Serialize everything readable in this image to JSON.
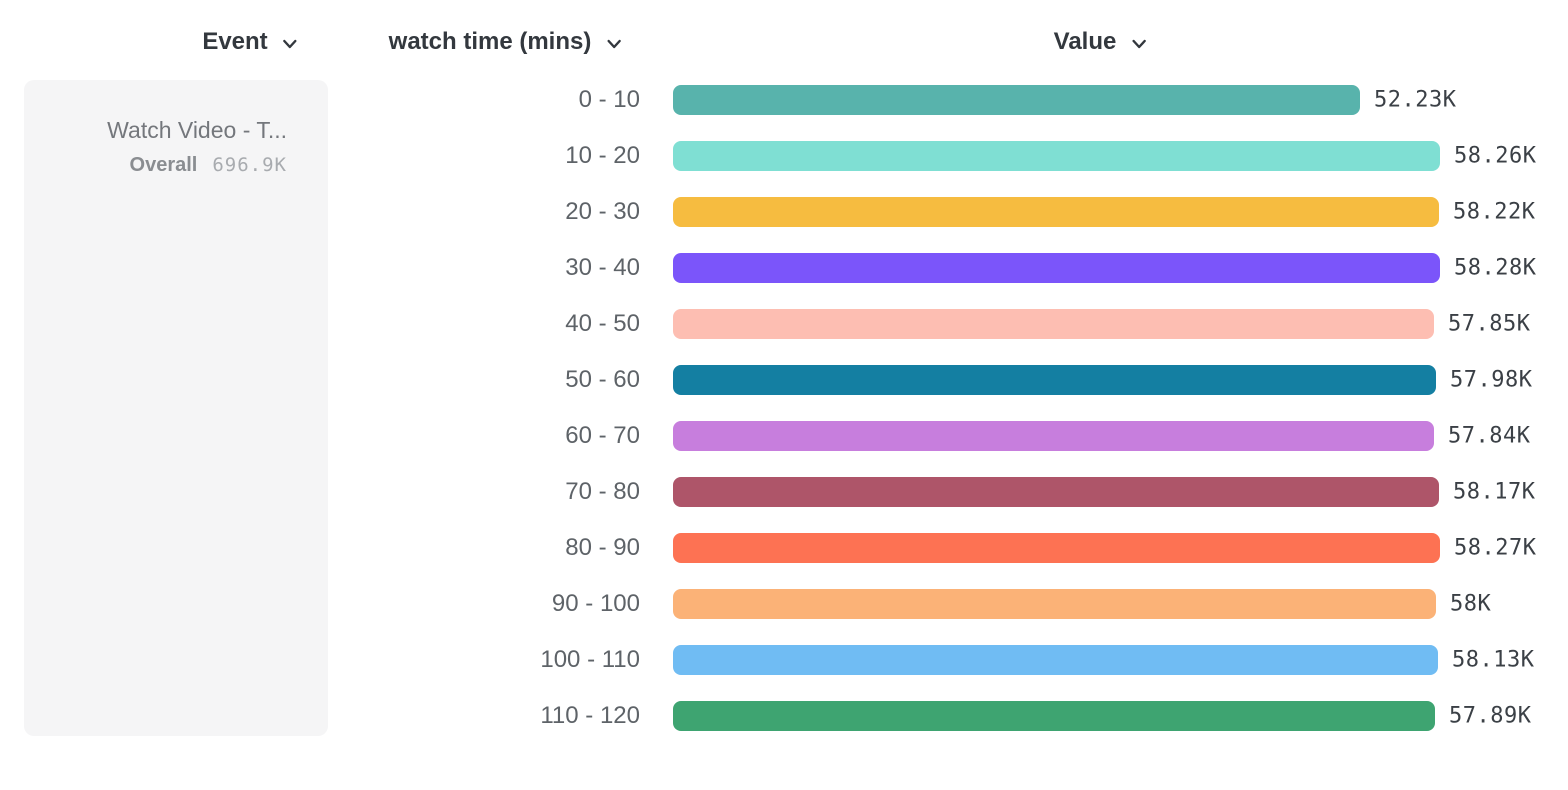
{
  "header": {
    "columns": [
      {
        "label": "Event",
        "icon": "chevron-down-icon"
      },
      {
        "label": "watch time (mins)",
        "icon": "chevron-down-icon"
      },
      {
        "label": "Value",
        "icon": "chevron-down-icon"
      }
    ]
  },
  "event_card": {
    "title": "Watch Video - T...",
    "overall_label": "Overall",
    "overall_value": "696.9K"
  },
  "chart_data": {
    "type": "bar",
    "orientation": "horizontal",
    "title": "",
    "xlabel": "Value",
    "ylabel": "watch time (mins)",
    "series_name": "Watch Video - T...",
    "series_overall_total": "696.9K",
    "categories": [
      "0 - 10",
      "10 - 20",
      "20 - 30",
      "30 - 40",
      "40 - 50",
      "50 - 60",
      "60 - 70",
      "70 - 80",
      "80 - 90",
      "90 - 100",
      "100 - 110",
      "110 - 120"
    ],
    "values_thousands": [
      52.23,
      58.26,
      58.22,
      58.28,
      57.85,
      57.98,
      57.84,
      58.17,
      58.27,
      58.0,
      58.13,
      57.89
    ],
    "value_labels": [
      "52.23K",
      "58.26K",
      "58.22K",
      "58.28K",
      "57.85K",
      "57.98K",
      "57.84K",
      "58.17K",
      "58.27K",
      "58K",
      "58.13K",
      "57.89K"
    ],
    "bar_colors": [
      "#58b3ac",
      "#7fdfd3",
      "#f6bc40",
      "#7b55fa",
      "#fdbeb2",
      "#147fa2",
      "#c77edd",
      "#ae5569",
      "#fd7253",
      "#fbb277",
      "#70bcf3",
      "#3ea471"
    ],
    "xlim_thousands": [
      0,
      58.28
    ],
    "grid": false,
    "legend_position": "left-card"
  },
  "colors": {
    "background": "#ffffff",
    "card_background": "#f5f5f6",
    "header_text": "#33383e",
    "row_label_text": "#5e6368",
    "value_text": "#3b4046",
    "card_title_text": "#74777c",
    "overall_label_text": "#8a8d91",
    "overall_value_text": "#a8abaf"
  }
}
